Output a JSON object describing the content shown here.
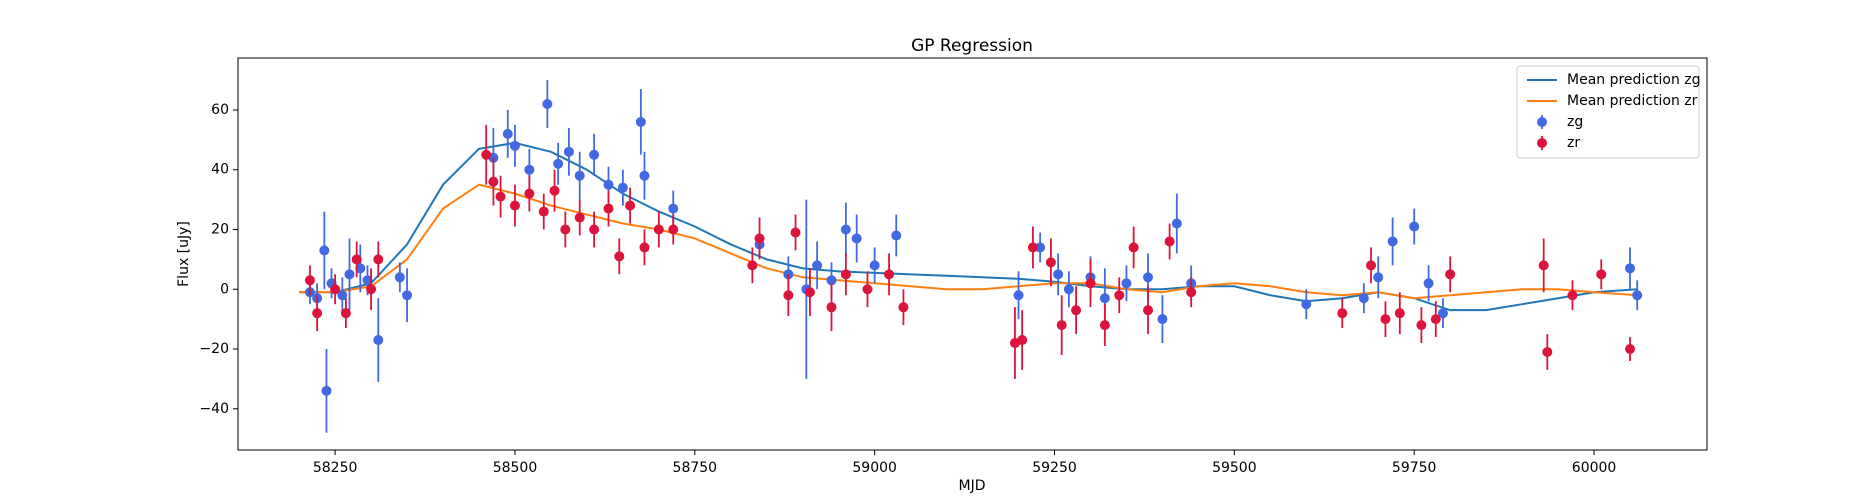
{
  "chart_data": {
    "type": "scatter",
    "title": "GP Regression",
    "x_label": "MJD",
    "y_label": "Flux [uJy]",
    "xlim": [
      58115,
      60157
    ],
    "ylim": [
      -53.8,
      77.4
    ],
    "xticks": [
      58250,
      58500,
      58750,
      59000,
      59250,
      59500,
      59750,
      60000
    ],
    "yticks": [
      {
        "value": -40,
        "label": "−40"
      },
      {
        "value": -20,
        "label": "−20"
      },
      0,
      20,
      40,
      60
    ],
    "legend": "upper right",
    "grid": false,
    "series": [
      {
        "name": "Mean prediction zg",
        "type": "line",
        "color": "#1f77b4",
        "x": [
          58200,
          58250,
          58300,
          58350,
          58400,
          58450,
          58500,
          58550,
          58600,
          58650,
          58700,
          58750,
          58800,
          58850,
          58900,
          58950,
          59000,
          59050,
          59100,
          59150,
          59200,
          59250,
          59300,
          59350,
          59400,
          59450,
          59500,
          59550,
          59600,
          59650,
          59700,
          59750,
          59800,
          59850,
          59900,
          59950,
          60000,
          60060
        ],
        "values": [
          -1,
          -1,
          2,
          15,
          35,
          47,
          49,
          46,
          40,
          32,
          26,
          21,
          15,
          10,
          7,
          6,
          5.5,
          5,
          4.5,
          4,
          3.5,
          2.5,
          1,
          0,
          0,
          1,
          1,
          -2,
          -4,
          -3,
          -1,
          -3,
          -7,
          -7,
          -5,
          -3,
          -1,
          0
        ]
      },
      {
        "name": "Mean prediction zr",
        "type": "line",
        "color": "#ff7f0e",
        "x": [
          58200,
          58250,
          58300,
          58350,
          58400,
          58450,
          58500,
          58550,
          58600,
          58650,
          58700,
          58750,
          58800,
          58850,
          58900,
          58950,
          59000,
          59050,
          59100,
          59150,
          59200,
          59250,
          59300,
          59350,
          59400,
          59450,
          59500,
          59550,
          59600,
          59650,
          59700,
          59750,
          59800,
          59850,
          59900,
          59950,
          60000,
          60060
        ],
        "values": [
          -1,
          -1,
          1,
          10,
          27,
          35,
          32,
          28,
          25,
          22,
          20,
          17,
          12,
          7,
          4,
          3,
          2,
          1,
          0,
          0,
          1,
          2,
          2,
          0,
          -1,
          1,
          2,
          1,
          -1,
          -2,
          -1,
          -3,
          -2,
          -1,
          0,
          0,
          -1,
          -2
        ]
      },
      {
        "name": "zg",
        "type": "errorbar",
        "color": "#4169e1",
        "x": [
          58215,
          58225,
          58235,
          58238,
          58245,
          58260,
          58270,
          58285,
          58295,
          58310,
          58340,
          58350,
          58470,
          58490,
          58500,
          58520,
          58545,
          58560,
          58575,
          58590,
          58610,
          58630,
          58650,
          58675,
          58680,
          58720,
          58840,
          58880,
          58905,
          58920,
          58940,
          58960,
          58975,
          59000,
          59030,
          59200,
          59230,
          59255,
          59270,
          59300,
          59320,
          59350,
          59380,
          59400,
          59420,
          59440,
          59600,
          59680,
          59700,
          59720,
          59750,
          59770,
          59790,
          60050,
          60060
        ],
        "values": [
          -1,
          -3,
          13,
          -34,
          2,
          -2,
          5,
          7,
          3,
          -17,
          4,
          -2,
          44,
          52,
          48,
          40,
          62,
          42,
          46,
          38,
          45,
          35,
          34,
          56,
          38,
          27,
          15,
          5,
          0,
          8,
          3,
          20,
          17,
          8,
          18,
          -2,
          14,
          5,
          0,
          4,
          -3,
          2,
          4,
          -10,
          22,
          2,
          -5,
          -3,
          4,
          16,
          21,
          2,
          -8,
          7,
          -2
        ],
        "errors": [
          4,
          5,
          13,
          14,
          5,
          6,
          12,
          8,
          5,
          14,
          5,
          9,
          10,
          8,
          7,
          7,
          8,
          7,
          8,
          8,
          7,
          6,
          6,
          11,
          8,
          6,
          4,
          6,
          30,
          8,
          6,
          9,
          8,
          6,
          7,
          8,
          5,
          7,
          6,
          7,
          10,
          6,
          8,
          8,
          10,
          6,
          5,
          5,
          7,
          8,
          6,
          6,
          5,
          7,
          5
        ]
      },
      {
        "name": "zr",
        "type": "errorbar",
        "color": "#dc143c",
        "x": [
          58215,
          58225,
          58250,
          58265,
          58280,
          58300,
          58310,
          58460,
          58470,
          58480,
          58500,
          58520,
          58540,
          58555,
          58570,
          58590,
          58610,
          58630,
          58645,
          58660,
          58680,
          58700,
          58720,
          58830,
          58840,
          58880,
          58890,
          58910,
          58940,
          58960,
          58990,
          59020,
          59040,
          59195,
          59205,
          59220,
          59245,
          59260,
          59280,
          59300,
          59320,
          59340,
          59360,
          59380,
          59410,
          59440,
          59650,
          59690,
          59710,
          59730,
          59760,
          59780,
          59800,
          59930,
          59935,
          59970,
          60010,
          60050
        ],
        "values": [
          3,
          -8,
          0,
          -8,
          10,
          0,
          10,
          45,
          36,
          31,
          28,
          32,
          26,
          33,
          20,
          24,
          20,
          27,
          11,
          28,
          14,
          20,
          20,
          8,
          17,
          -2,
          19,
          -1,
          -6,
          5,
          0,
          5,
          -6,
          -18,
          -17,
          14,
          9,
          -12,
          -7,
          2,
          -12,
          -2,
          14,
          -7,
          16,
          -1,
          -8,
          8,
          -10,
          -8,
          -12,
          -10,
          5,
          8,
          -21,
          -2,
          5,
          -20
        ],
        "errors": [
          5,
          6,
          5,
          5,
          6,
          7,
          6,
          10,
          8,
          7,
          7,
          6,
          6,
          7,
          6,
          6,
          6,
          6,
          6,
          6,
          6,
          6,
          5,
          6,
          7,
          7,
          6,
          8,
          8,
          7,
          6,
          7,
          6,
          12,
          10,
          7,
          8,
          10,
          8,
          8,
          7,
          6,
          7,
          8,
          6,
          5,
          5,
          6,
          6,
          7,
          6,
          6,
          6,
          9,
          6,
          5,
          5,
          4
        ]
      }
    ]
  }
}
